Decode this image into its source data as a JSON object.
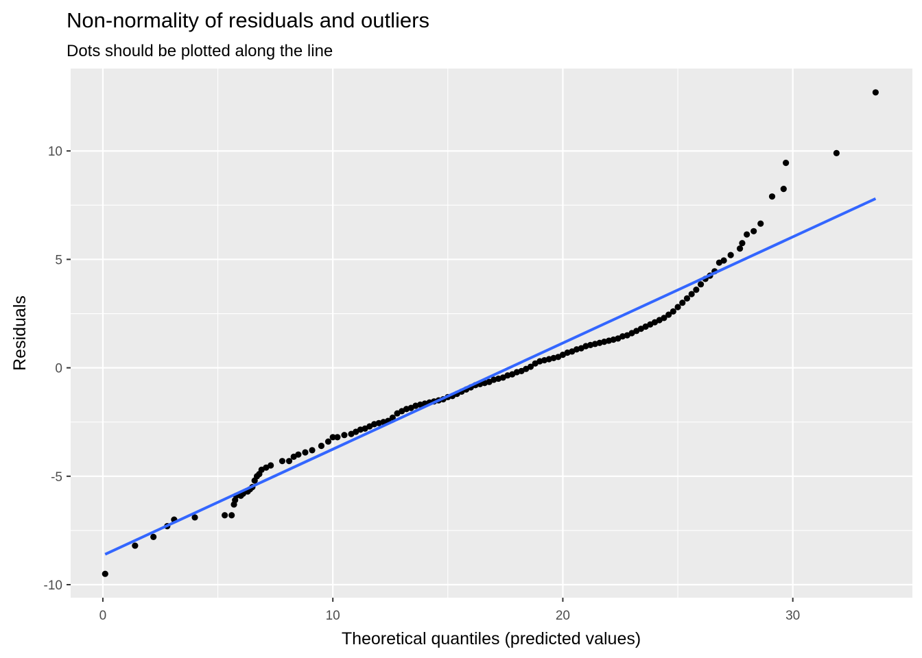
{
  "chart_data": {
    "type": "scatter",
    "title": "Non-normality of residuals and outliers",
    "subtitle": "Dots should be plotted along the line",
    "xlabel": "Theoretical quantiles (predicted values)",
    "ylabel": "Residuals",
    "xlim": [
      -1.4,
      35.2
    ],
    "ylim": [
      -10.6,
      13.8
    ],
    "x_ticks": [
      0,
      10,
      20,
      30
    ],
    "x_tick_labels": [
      "0",
      "10",
      "20",
      "30"
    ],
    "y_ticks": [
      -10,
      -5,
      0,
      5,
      10
    ],
    "y_tick_labels": [
      "-10",
      "-5",
      "0",
      "5",
      "10"
    ],
    "grid": true,
    "legend": "none",
    "colors": {
      "panel": "#ebebeb",
      "grid": "#ffffff",
      "points": "#000000",
      "line": "#3366ff"
    },
    "reference_line": {
      "x": [
        0.1,
        33.6
      ],
      "y": [
        -8.6,
        7.8
      ]
    },
    "points": [
      [
        0.1,
        -9.5
      ],
      [
        1.4,
        -8.2
      ],
      [
        2.2,
        -7.8
      ],
      [
        2.8,
        -7.3
      ],
      [
        3.1,
        -7.0
      ],
      [
        4.0,
        -6.9
      ],
      [
        5.3,
        -6.8
      ],
      [
        5.6,
        -6.8
      ],
      [
        5.7,
        -6.3
      ],
      [
        5.75,
        -6.1
      ],
      [
        5.8,
        -5.9
      ],
      [
        6.0,
        -5.9
      ],
      [
        6.1,
        -5.8
      ],
      [
        6.3,
        -5.7
      ],
      [
        6.4,
        -5.6
      ],
      [
        6.5,
        -5.5
      ],
      [
        6.6,
        -5.2
      ],
      [
        6.7,
        -5.0
      ],
      [
        6.8,
        -4.9
      ],
      [
        6.9,
        -4.7
      ],
      [
        7.1,
        -4.6
      ],
      [
        7.3,
        -4.5
      ],
      [
        7.8,
        -4.3
      ],
      [
        8.1,
        -4.3
      ],
      [
        8.3,
        -4.1
      ],
      [
        8.5,
        -4.0
      ],
      [
        8.8,
        -3.9
      ],
      [
        9.1,
        -3.8
      ],
      [
        9.5,
        -3.6
      ],
      [
        9.8,
        -3.4
      ],
      [
        10.0,
        -3.2
      ],
      [
        10.2,
        -3.2
      ],
      [
        10.5,
        -3.1
      ],
      [
        10.8,
        -3.05
      ],
      [
        11.0,
        -2.95
      ],
      [
        11.2,
        -2.85
      ],
      [
        11.4,
        -2.8
      ],
      [
        11.6,
        -2.7
      ],
      [
        11.8,
        -2.6
      ],
      [
        12.0,
        -2.55
      ],
      [
        12.2,
        -2.5
      ],
      [
        12.4,
        -2.45
      ],
      [
        12.6,
        -2.3
      ],
      [
        12.8,
        -2.1
      ],
      [
        13.0,
        -2.0
      ],
      [
        13.2,
        -1.9
      ],
      [
        13.4,
        -1.85
      ],
      [
        13.6,
        -1.75
      ],
      [
        13.8,
        -1.7
      ],
      [
        14.0,
        -1.65
      ],
      [
        14.2,
        -1.6
      ],
      [
        14.4,
        -1.55
      ],
      [
        14.6,
        -1.5
      ],
      [
        14.8,
        -1.45
      ],
      [
        15.0,
        -1.35
      ],
      [
        15.2,
        -1.3
      ],
      [
        15.4,
        -1.2
      ],
      [
        15.6,
        -1.1
      ],
      [
        15.8,
        -1.0
      ],
      [
        16.0,
        -0.9
      ],
      [
        16.2,
        -0.8
      ],
      [
        16.4,
        -0.75
      ],
      [
        16.6,
        -0.7
      ],
      [
        16.8,
        -0.65
      ],
      [
        17.0,
        -0.55
      ],
      [
        17.2,
        -0.5
      ],
      [
        17.4,
        -0.45
      ],
      [
        17.6,
        -0.35
      ],
      [
        17.8,
        -0.3
      ],
      [
        18.0,
        -0.2
      ],
      [
        18.2,
        -0.15
      ],
      [
        18.4,
        -0.05
      ],
      [
        18.6,
        0.05
      ],
      [
        18.8,
        0.2
      ],
      [
        19.0,
        0.3
      ],
      [
        19.2,
        0.35
      ],
      [
        19.4,
        0.4
      ],
      [
        19.6,
        0.45
      ],
      [
        19.8,
        0.5
      ],
      [
        20.0,
        0.6
      ],
      [
        20.2,
        0.7
      ],
      [
        20.4,
        0.75
      ],
      [
        20.6,
        0.85
      ],
      [
        20.8,
        0.9
      ],
      [
        21.0,
        1.0
      ],
      [
        21.2,
        1.05
      ],
      [
        21.4,
        1.1
      ],
      [
        21.6,
        1.15
      ],
      [
        21.8,
        1.2
      ],
      [
        22.0,
        1.25
      ],
      [
        22.2,
        1.3
      ],
      [
        22.4,
        1.35
      ],
      [
        22.6,
        1.45
      ],
      [
        22.8,
        1.5
      ],
      [
        23.0,
        1.6
      ],
      [
        23.2,
        1.7
      ],
      [
        23.4,
        1.8
      ],
      [
        23.6,
        1.9
      ],
      [
        23.8,
        2.0
      ],
      [
        24.0,
        2.1
      ],
      [
        24.2,
        2.2
      ],
      [
        24.4,
        2.3
      ],
      [
        24.6,
        2.45
      ],
      [
        24.8,
        2.6
      ],
      [
        25.0,
        2.8
      ],
      [
        25.2,
        3.0
      ],
      [
        25.4,
        3.2
      ],
      [
        25.6,
        3.4
      ],
      [
        25.8,
        3.6
      ],
      [
        26.0,
        3.85
      ],
      [
        26.2,
        4.1
      ],
      [
        26.4,
        4.25
      ],
      [
        26.6,
        4.45
      ],
      [
        26.8,
        4.85
      ],
      [
        27.0,
        4.95
      ],
      [
        27.3,
        5.2
      ],
      [
        27.7,
        5.5
      ],
      [
        27.8,
        5.75
      ],
      [
        28.0,
        6.15
      ],
      [
        28.3,
        6.3
      ],
      [
        28.6,
        6.65
      ],
      [
        29.1,
        7.9
      ],
      [
        29.6,
        8.25
      ],
      [
        29.7,
        9.45
      ],
      [
        31.9,
        9.9
      ],
      [
        33.6,
        12.7
      ]
    ]
  }
}
